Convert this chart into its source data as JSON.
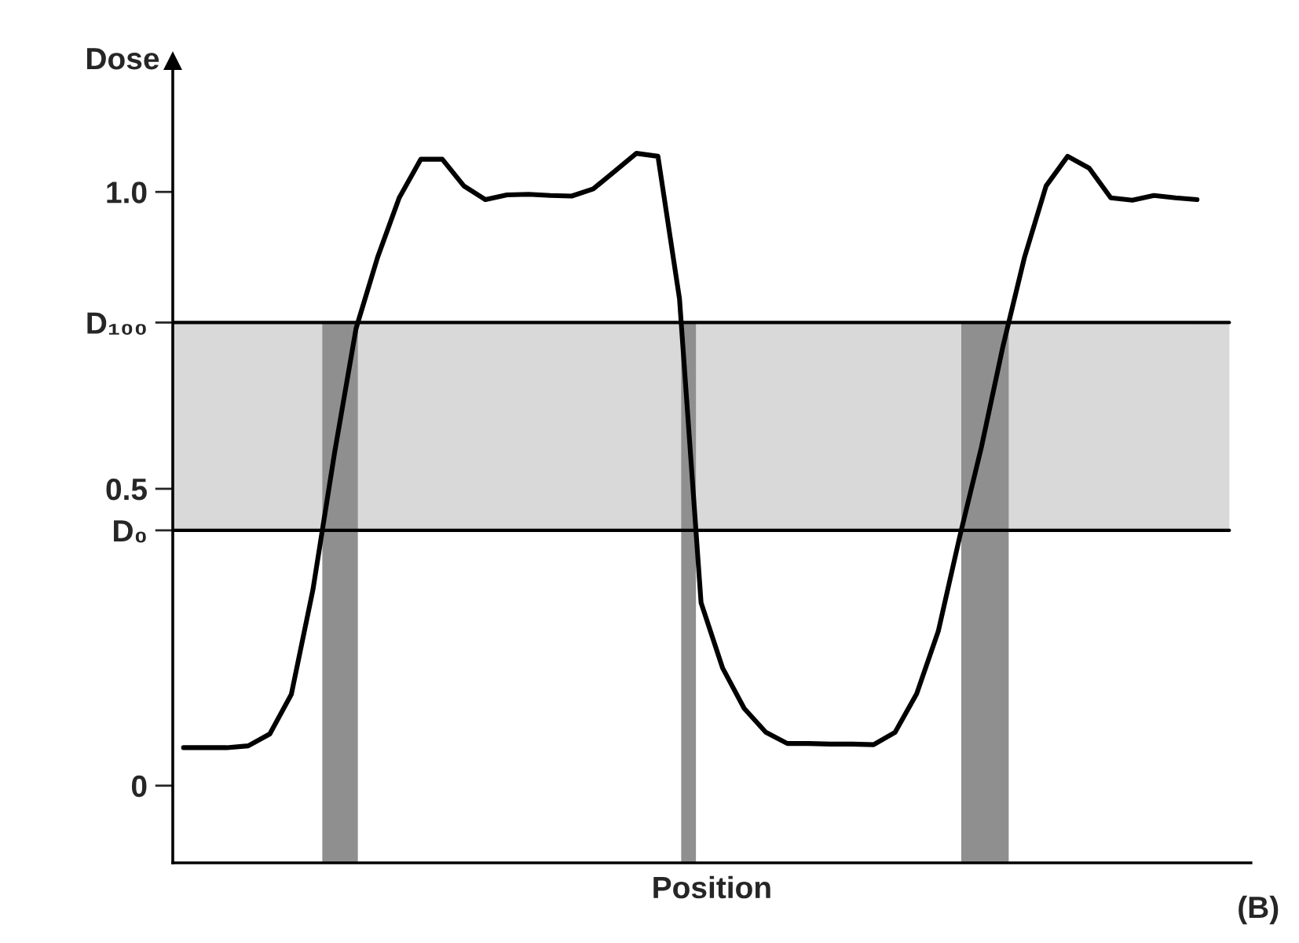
{
  "chart_data": {
    "type": "line",
    "xlabel": "Position",
    "ylabel": "Dose",
    "categories": [
      null,
      null,
      null,
      null,
      null,
      null,
      null,
      null,
      null,
      null,
      null,
      null,
      null,
      null,
      null,
      null,
      null,
      null,
      null,
      null,
      null,
      null,
      null,
      null,
      null,
      null,
      null,
      null,
      null,
      null,
      null,
      null,
      null,
      null,
      null,
      null,
      null,
      null,
      null,
      null,
      null,
      null,
      null,
      null,
      null,
      null,
      null,
      null
    ],
    "series": [
      {
        "color": "#000000",
        "values": [
          0.064,
          0.064,
          0.064,
          0.067,
          0.087,
          0.154,
          0.33,
          0.56,
          0.77,
          0.89,
          0.99,
          1.055,
          1.055,
          1.01,
          0.987,
          0.995,
          0.996,
          0.994,
          0.993,
          1.005,
          1.035,
          1.065,
          1.06,
          0.82,
          0.308,
          0.198,
          0.13,
          0.09,
          0.071,
          0.071,
          0.07,
          0.07,
          0.069,
          0.09,
          0.155,
          0.26,
          0.42,
          0.57,
          0.74,
          0.89,
          1.01,
          1.06,
          1.04,
          0.99,
          0.986,
          0.994,
          0.99,
          0.987
        ]
      }
    ],
    "ylim": [
      -0.13,
      1.22
    ],
    "yticks": [
      {
        "value": 0,
        "label": "0"
      },
      {
        "value": 0.43,
        "label": "D₀"
      },
      {
        "value": 0.5,
        "label": "0.5"
      },
      {
        "value": 0.78,
        "label": "D₁₀₀"
      },
      {
        "value": 1.0,
        "label": "1.0"
      }
    ],
    "tick_labels": "y",
    "grid": false,
    "legend": false,
    "marker": "none",
    "line_style": "solid",
    "bands": [
      {
        "axis": "y",
        "from": 0.43,
        "to": 0.78,
        "color": "#d9d9d9"
      }
    ],
    "ref_lines": [
      {
        "axis": "y",
        "value": 0.78,
        "color": "#000000"
      },
      {
        "axis": "y",
        "value": 0.43,
        "color": "#000000"
      }
    ],
    "annotations": [
      "(B)"
    ]
  }
}
